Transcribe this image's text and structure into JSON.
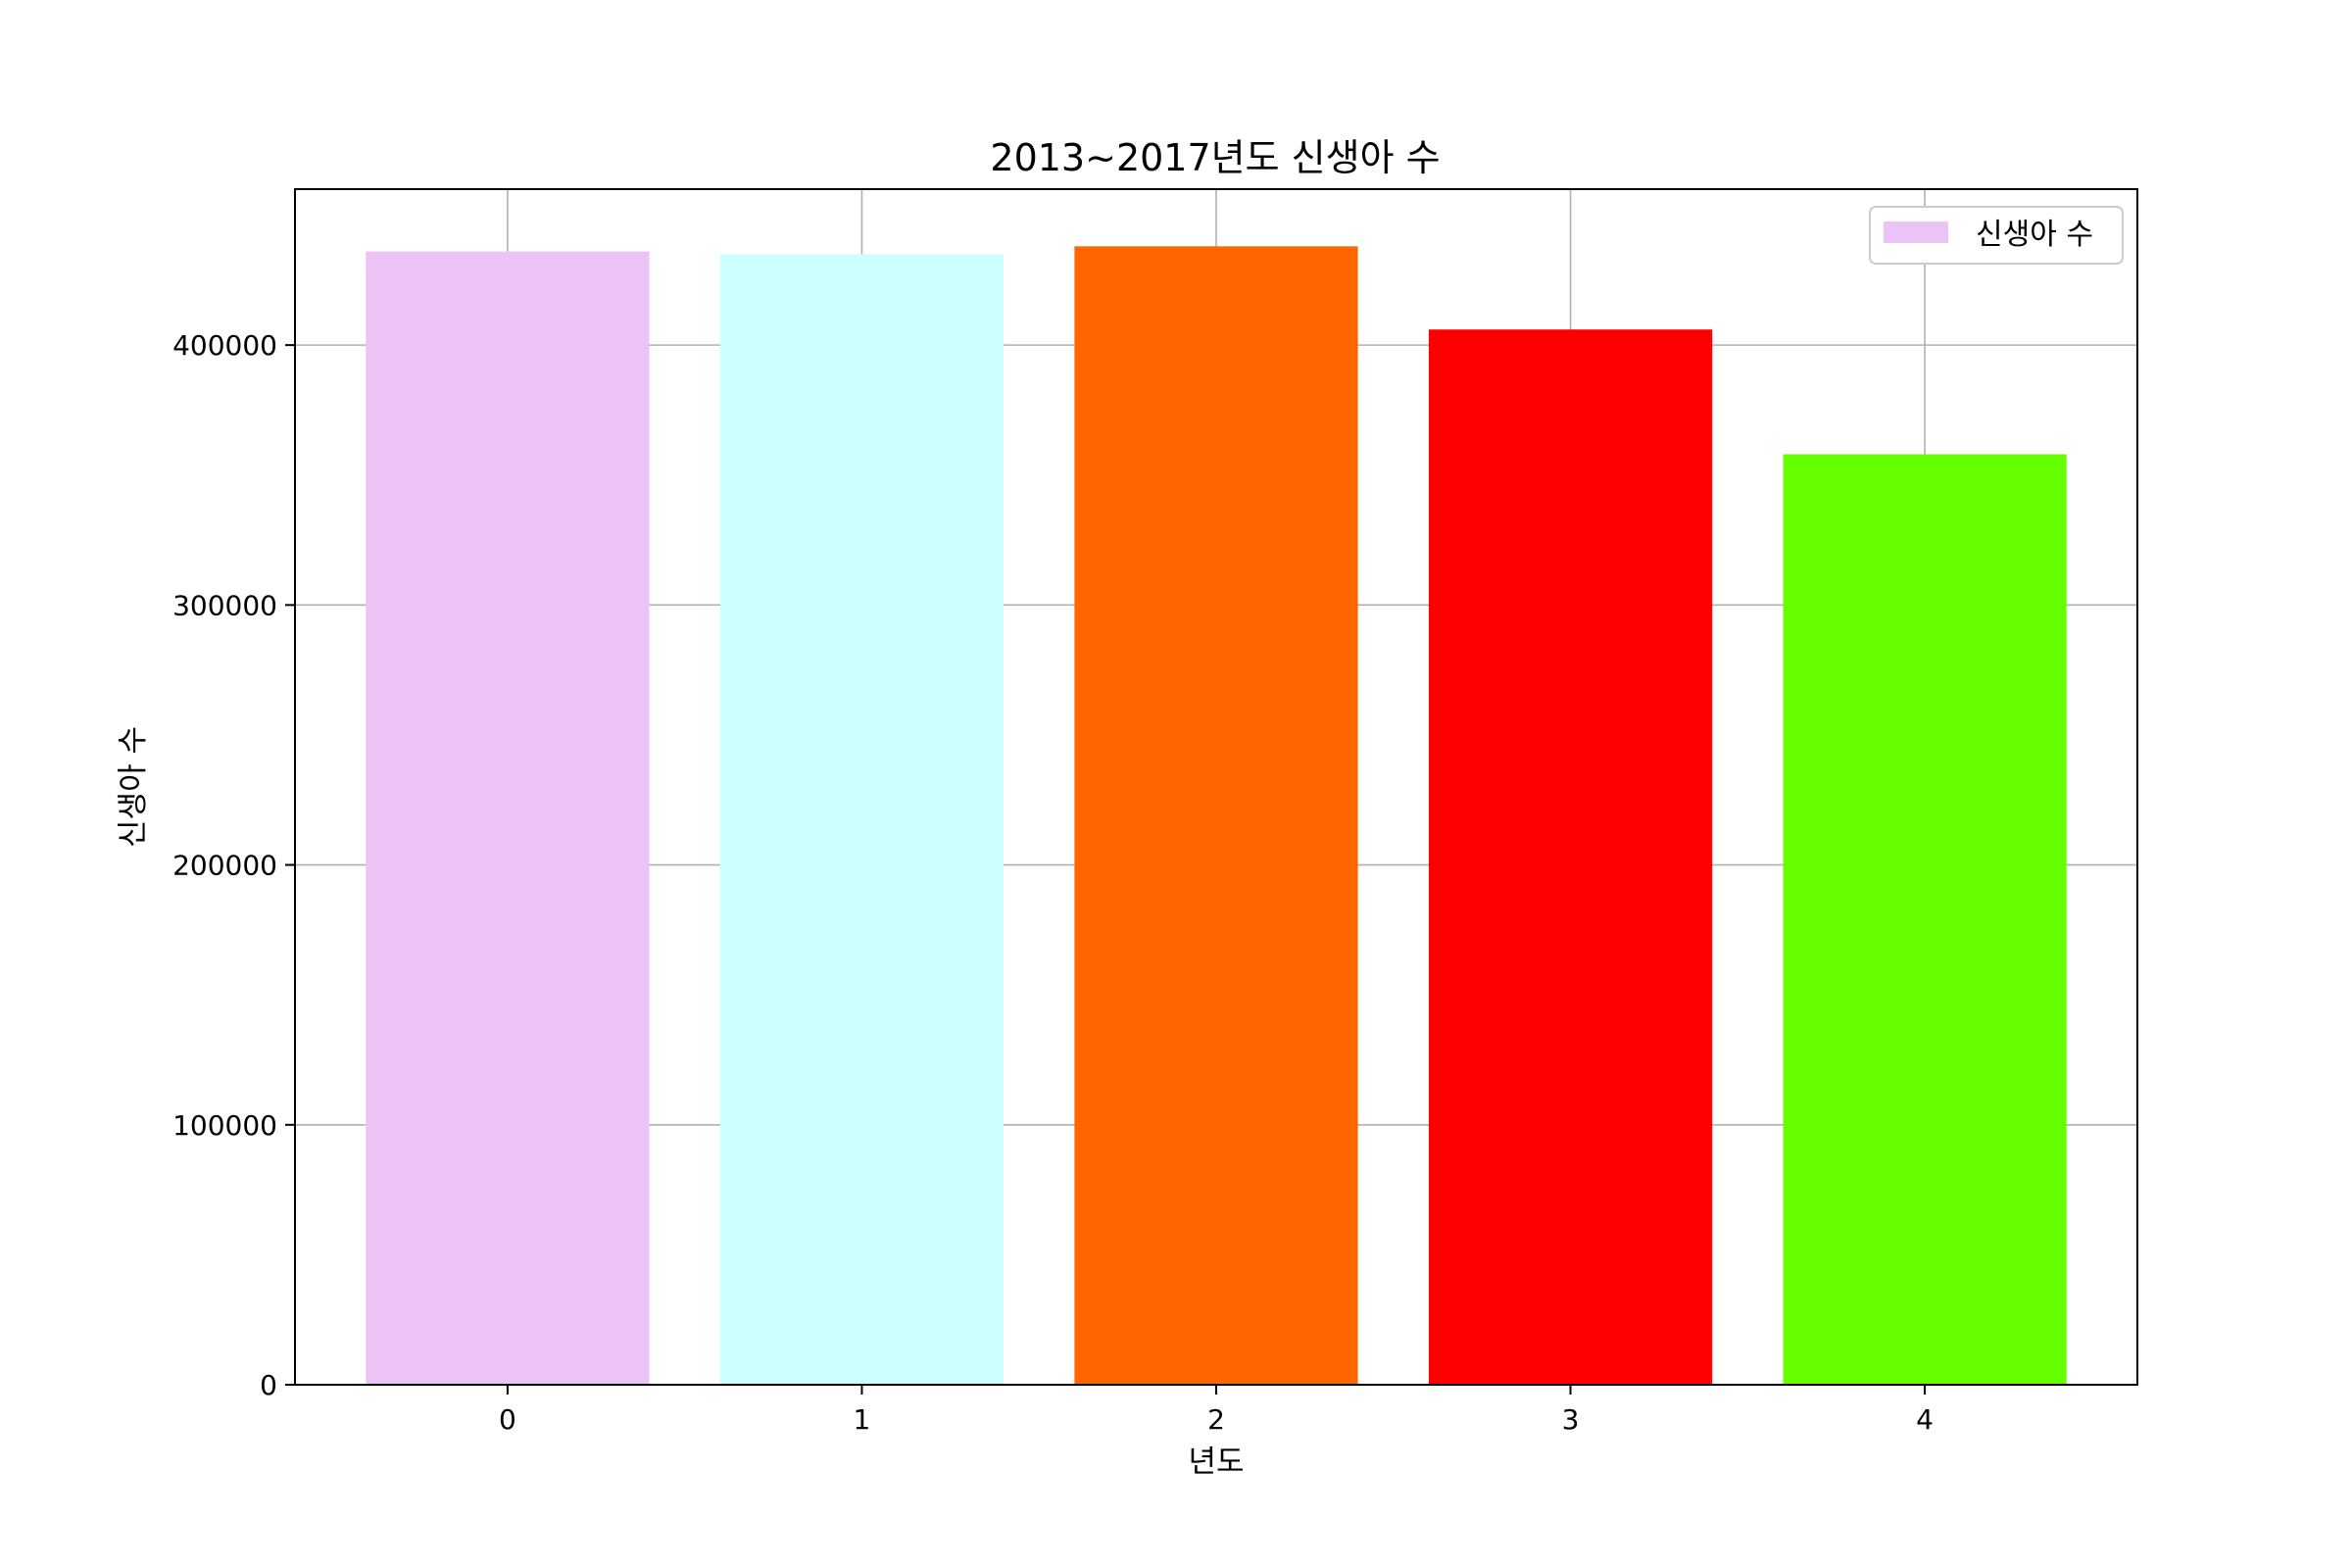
{
  "chart_data": {
    "type": "bar",
    "title": "2013~2017년도 신생아 수",
    "xlabel": "년도",
    "ylabel": "신생아 수",
    "categories": [
      "0",
      "1",
      "2",
      "3",
      "4"
    ],
    "series": [
      {
        "name": "신생아 수",
        "values": [
          436000,
          435000,
          438000,
          406000,
          358000
        ]
      }
    ],
    "bar_colors": [
      "#ecc3f7",
      "#ccffff",
      "#ff6600",
      "#ff0000",
      "#66ff00"
    ],
    "ylim": [
      0,
      460000
    ],
    "yticks": [
      0,
      100000,
      200000,
      300000,
      400000
    ],
    "ytick_labels": [
      "0",
      "100000",
      "200000",
      "300000",
      "400000"
    ],
    "grid": true,
    "grid_color": "#b0b0b0",
    "legend_position": "top-right"
  }
}
